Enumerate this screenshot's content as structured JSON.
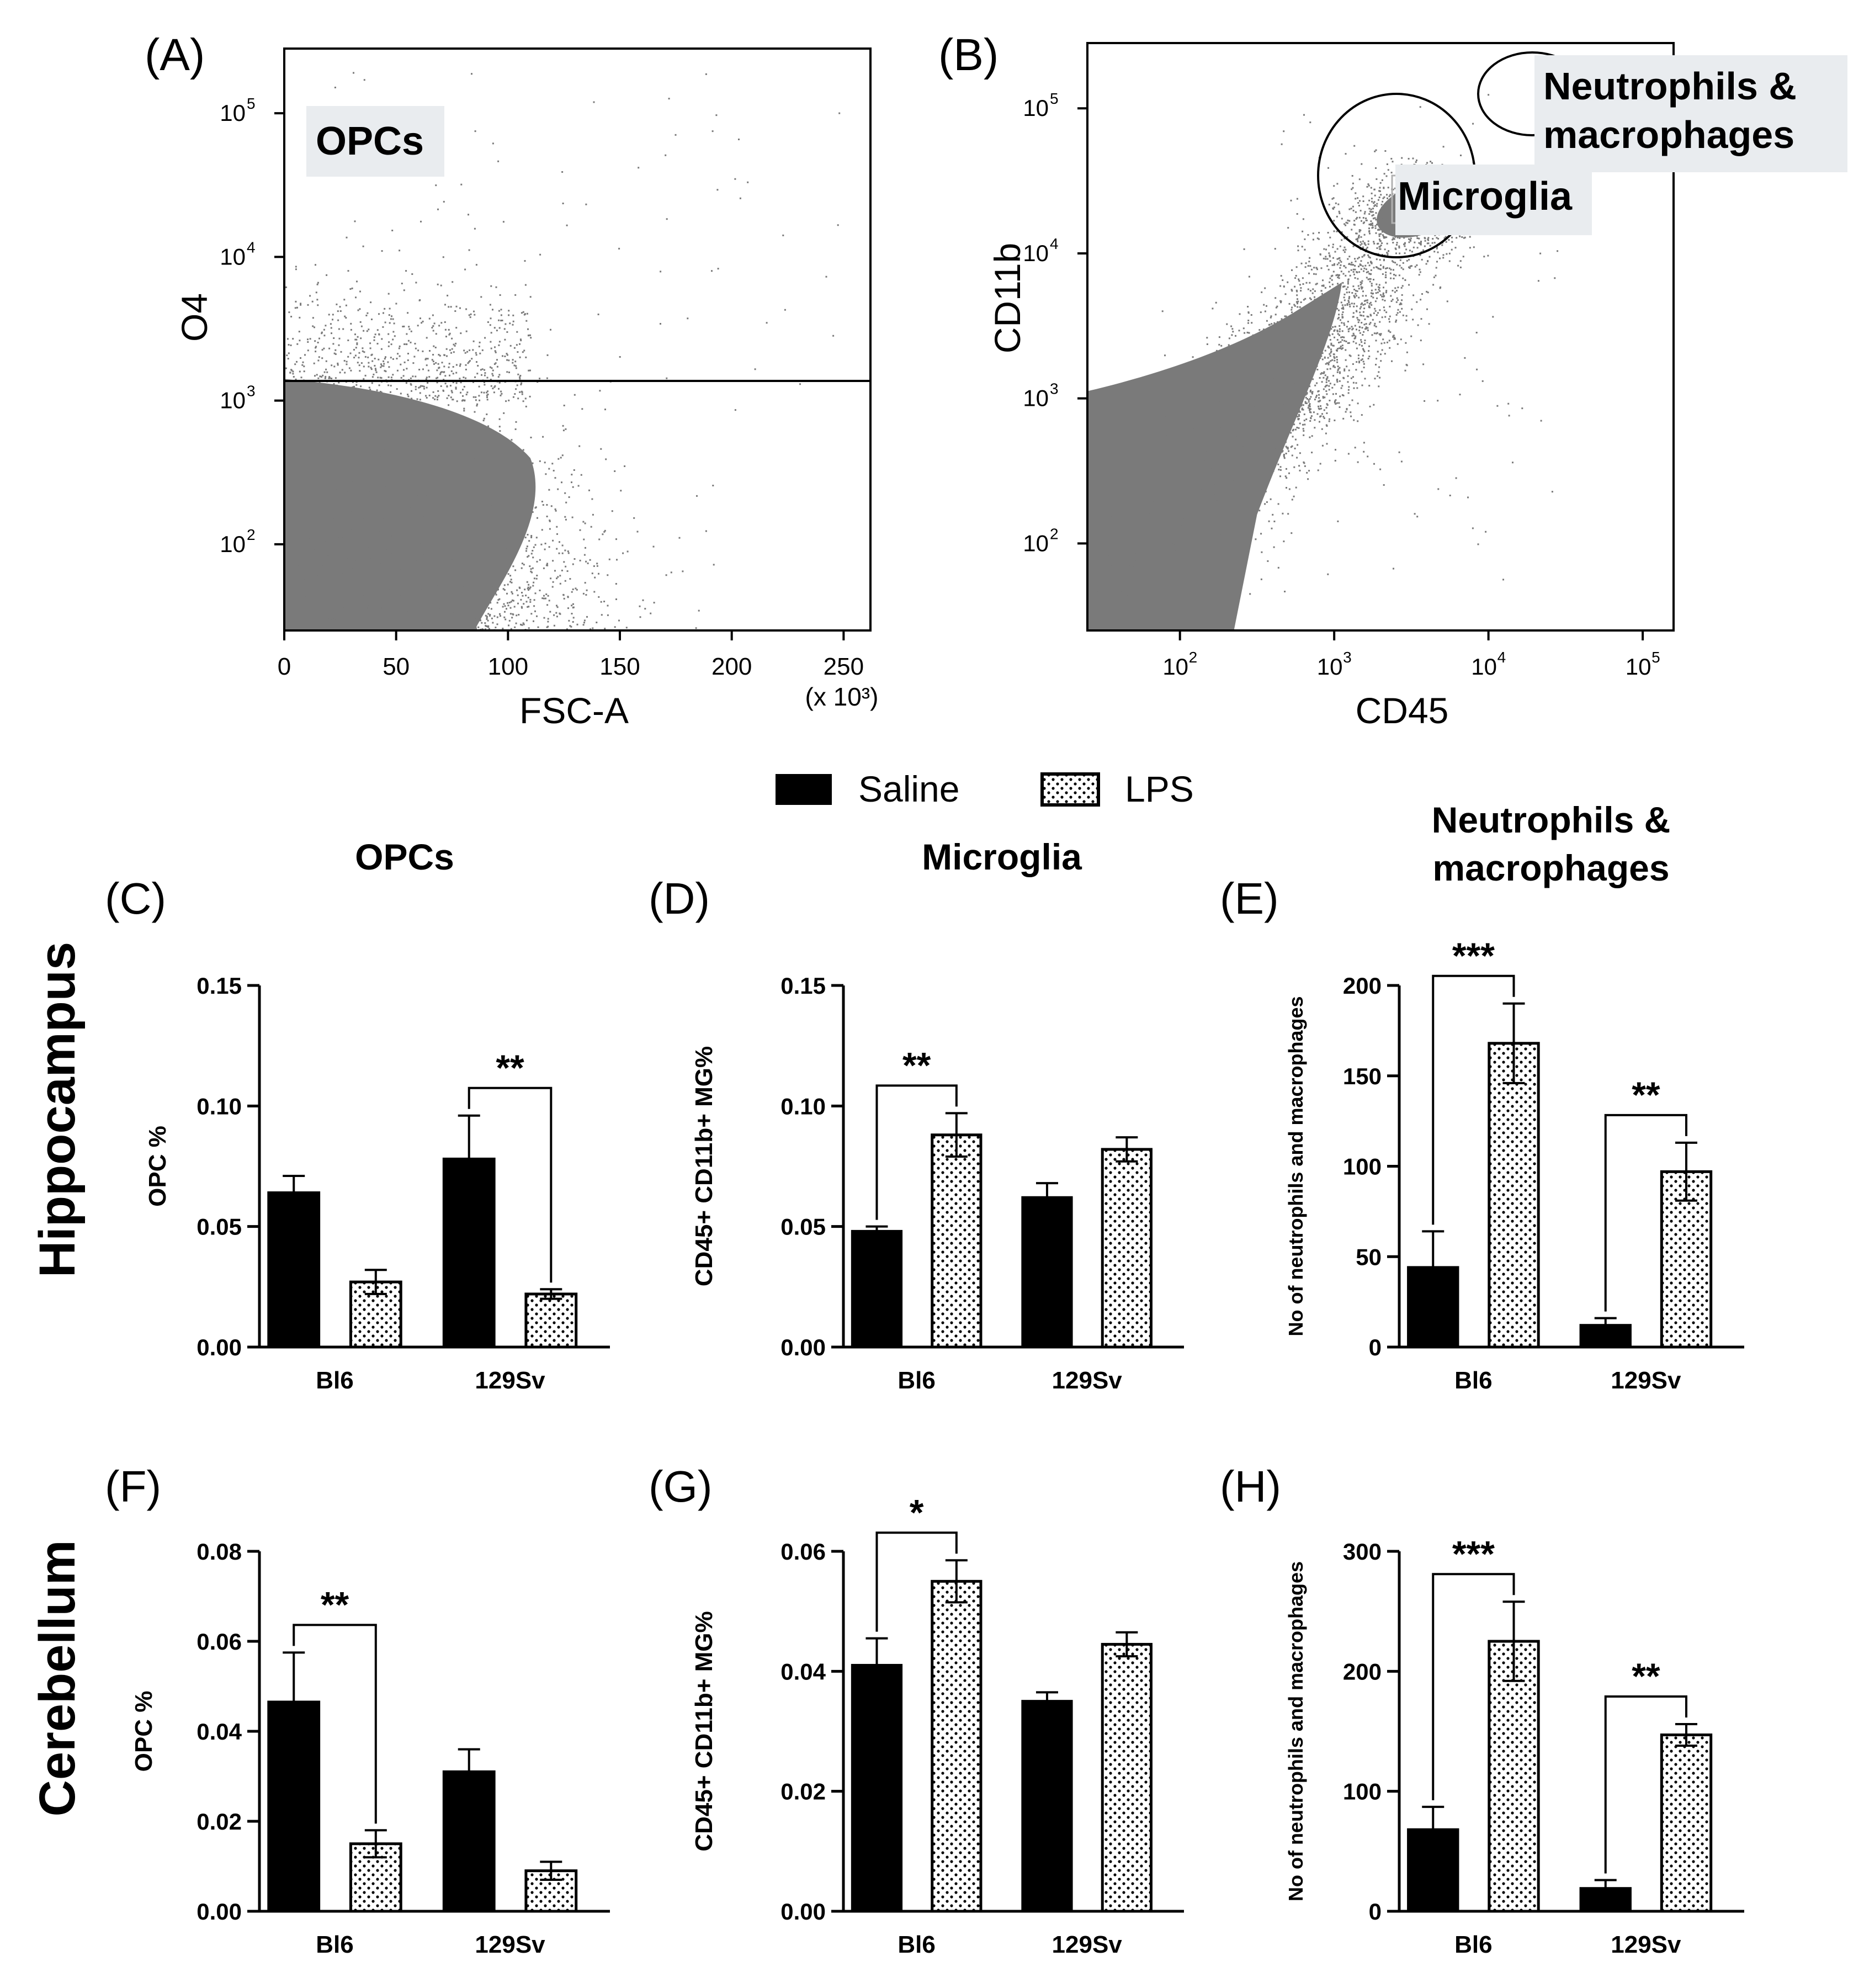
{
  "colors": {
    "ink": "#000000",
    "dots": "#7a7a7a",
    "gate_box": "#e9ecef",
    "background": "#ffffff"
  },
  "legend": {
    "saline": "Saline",
    "lps": "LPS"
  },
  "rows": {
    "hippocampus": "Hippocampus",
    "cerebellum": "Cerebellum"
  },
  "columns": {
    "opcs": "OPCs",
    "microglia": "Microglia",
    "neutro_line1": "Neutrophils &",
    "neutro_line2": "macrophages"
  },
  "flow": {
    "A": {
      "panel": "(A)",
      "xlabel": "FSC-A",
      "ylabel": "O4",
      "xunit": "(x 10³)",
      "xticks": [
        "0",
        "50",
        "100",
        "150",
        "200",
        "250"
      ],
      "xtick_values": [
        0,
        50,
        100,
        150,
        200,
        250
      ],
      "xlim": [
        0,
        262
      ],
      "yticks": [
        "2",
        "3",
        "4",
        "5"
      ],
      "ylog_range": [
        1.4,
        5.45
      ],
      "gate_label": "OPCs",
      "gate_threshold": 1300
    },
    "B": {
      "panel": "(B)",
      "xlabel": "CD45",
      "ylabel": "CD11b",
      "xticks": [
        "2",
        "3",
        "4",
        "5"
      ],
      "xlog_range": [
        1.4,
        5.2
      ],
      "yticks": [
        "2",
        "3",
        "4",
        "5"
      ],
      "ylog_range": [
        1.4,
        5.45
      ],
      "gate_microglia": "Microglia",
      "gate_neutro_1": "Neutrophils &",
      "gate_neutro_2": "macrophages"
    }
  },
  "chart_data": [
    {
      "id": "C",
      "panel": "(C)",
      "type": "bar",
      "title": "OPCs",
      "categories": [
        "Bl6",
        "129Sv"
      ],
      "ylabel": "OPC %",
      "ylim": [
        0,
        0.15
      ],
      "yticks": [
        0,
        0.05,
        0.1,
        0.15
      ],
      "ytick_labels": [
        "0.00",
        "0.05",
        "0.10",
        "0.15"
      ],
      "series": [
        {
          "name": "Saline",
          "values": [
            0.064,
            0.078
          ],
          "errors": [
            0.007,
            0.018
          ]
        },
        {
          "name": "LPS",
          "values": [
            0.027,
            0.022
          ],
          "errors": [
            0.005,
            0.002
          ]
        }
      ],
      "significance": [
        {
          "category": "129Sv",
          "label": "**"
        }
      ]
    },
    {
      "id": "D",
      "panel": "(D)",
      "type": "bar",
      "title": "Microglia",
      "categories": [
        "Bl6",
        "129Sv"
      ],
      "ylabel": "CD45+ CD11b+ MG%",
      "ylim": [
        0,
        0.15
      ],
      "yticks": [
        0,
        0.05,
        0.1,
        0.15
      ],
      "ytick_labels": [
        "0.00",
        "0.05",
        "0.10",
        "0.15"
      ],
      "series": [
        {
          "name": "Saline",
          "values": [
            0.048,
            0.062
          ],
          "errors": [
            0.002,
            0.006
          ]
        },
        {
          "name": "LPS",
          "values": [
            0.088,
            0.082
          ],
          "errors": [
            0.009,
            0.005
          ]
        }
      ],
      "significance": [
        {
          "category": "Bl6",
          "label": "**"
        }
      ]
    },
    {
      "id": "E",
      "panel": "(E)",
      "type": "bar",
      "title": "Neutrophils & macrophages",
      "categories": [
        "Bl6",
        "129Sv"
      ],
      "ylabel": "No of neutrophils and macrophages",
      "ylim": [
        0,
        200
      ],
      "yticks": [
        0,
        50,
        100,
        150,
        200
      ],
      "ytick_labels": [
        "0",
        "50",
        "100",
        "150",
        "200"
      ],
      "series": [
        {
          "name": "Saline",
          "values": [
            44,
            12
          ],
          "errors": [
            20,
            4
          ]
        },
        {
          "name": "LPS",
          "values": [
            168,
            97
          ],
          "errors": [
            22,
            16
          ]
        }
      ],
      "significance": [
        {
          "category": "Bl6",
          "label": "***"
        },
        {
          "category": "129Sv",
          "label": "**"
        }
      ]
    },
    {
      "id": "F",
      "panel": "(F)",
      "type": "bar",
      "categories": [
        "Bl6",
        "129Sv"
      ],
      "ylabel": "OPC %",
      "ylim": [
        0,
        0.08
      ],
      "yticks": [
        0,
        0.02,
        0.04,
        0.06,
        0.08
      ],
      "ytick_labels": [
        "0.00",
        "0.02",
        "0.04",
        "0.06",
        "0.08"
      ],
      "series": [
        {
          "name": "Saline",
          "values": [
            0.0465,
            0.031
          ],
          "errors": [
            0.011,
            0.005
          ]
        },
        {
          "name": "LPS",
          "values": [
            0.015,
            0.009
          ],
          "errors": [
            0.003,
            0.002
          ]
        }
      ],
      "significance": [
        {
          "category": "Bl6",
          "label": "**"
        }
      ]
    },
    {
      "id": "G",
      "panel": "(G)",
      "type": "bar",
      "categories": [
        "Bl6",
        "129Sv"
      ],
      "ylabel": "CD45+ CD11b+ MG%",
      "ylim": [
        0,
        0.06
      ],
      "yticks": [
        0,
        0.02,
        0.04,
        0.06
      ],
      "ytick_labels": [
        "0.00",
        "0.02",
        "0.04",
        "0.06"
      ],
      "series": [
        {
          "name": "Saline",
          "values": [
            0.041,
            0.035
          ],
          "errors": [
            0.0045,
            0.0015
          ]
        },
        {
          "name": "LPS",
          "values": [
            0.055,
            0.0445
          ],
          "errors": [
            0.0035,
            0.002
          ]
        }
      ],
      "significance": [
        {
          "category": "Bl6",
          "label": "*"
        }
      ]
    },
    {
      "id": "H",
      "panel": "(H)",
      "type": "bar",
      "categories": [
        "Bl6",
        "129Sv"
      ],
      "ylabel": "No of neutrophils and macrophages",
      "ylim": [
        0,
        300
      ],
      "yticks": [
        0,
        100,
        200,
        300
      ],
      "ytick_labels": [
        "0",
        "100",
        "200",
        "300"
      ],
      "series": [
        {
          "name": "Saline",
          "values": [
            68,
            19
          ],
          "errors": [
            19,
            7
          ]
        },
        {
          "name": "LPS",
          "values": [
            225,
            147
          ],
          "errors": [
            33,
            9
          ]
        }
      ],
      "significance": [
        {
          "category": "Bl6",
          "label": "***"
        },
        {
          "category": "129Sv",
          "label": "**"
        }
      ]
    }
  ]
}
